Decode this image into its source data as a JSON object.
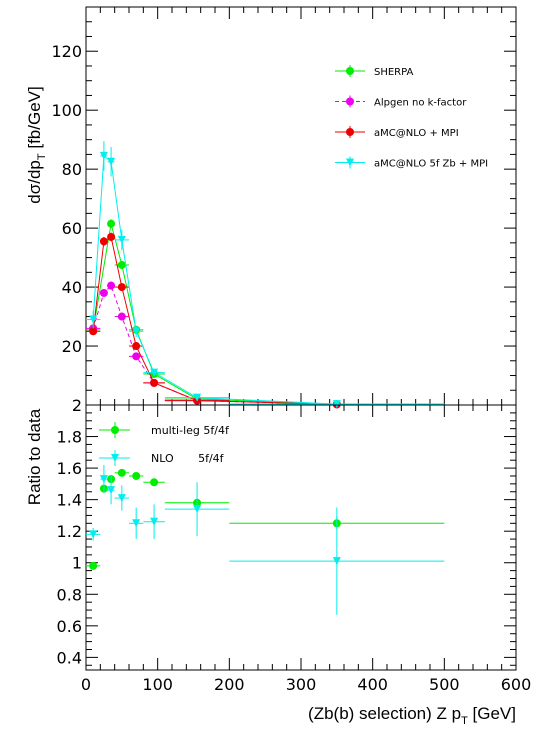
{
  "chart_data": [
    {
      "type": "line",
      "panel": "top",
      "ylabel_main": "dσ/dp",
      "ylabel_sub": "T",
      "ylabel_tail": " [fb/GeV]",
      "xlim": [
        0,
        600
      ],
      "ylim": [
        0,
        135
      ],
      "yticks": [
        20,
        40,
        60,
        80,
        100,
        120
      ],
      "grid": false,
      "legend_position": "top-right",
      "series": [
        {
          "name": "SHERPA",
          "color": "#00ee00",
          "style": "solid",
          "marker": "circle",
          "x": [
            10,
            35,
            50,
            70,
            95,
            155,
            350
          ],
          "xerr": [
            [
              0,
              20
            ],
            [
              30,
              40
            ],
            [
              40,
              60
            ],
            [
              60,
              80
            ],
            [
              80,
              110
            ],
            [
              110,
              200
            ],
            [
              200,
              500
            ]
          ],
          "y": [
            25.5,
            61.5,
            47.5,
            25.5,
            10.5,
            2.0,
            0.3
          ],
          "yerr": [
            1.2,
            1.5,
            1.3,
            1.0,
            0.6,
            0.2,
            0.05
          ]
        },
        {
          "name": "Alpgen no k-factor",
          "color": "#ee00ee",
          "style": "dashed",
          "marker": "circle",
          "x": [
            10,
            25,
            35,
            50,
            70,
            95,
            155,
            350
          ],
          "xerr": [
            [
              0,
              20
            ],
            [
              20,
              30
            ],
            [
              30,
              40
            ],
            [
              40,
              60
            ],
            [
              60,
              80
            ],
            [
              80,
              110
            ],
            [
              110,
              200
            ],
            [
              200,
              500
            ]
          ],
          "y": [
            26.0,
            38.0,
            40.5,
            30.0,
            16.5,
            7.5,
            1.5,
            0.2
          ],
          "yerr": [
            1.2,
            1.3,
            1.4,
            1.2,
            0.9,
            0.5,
            0.15,
            0.05
          ]
        },
        {
          "name": "aMC@NLO + MPI",
          "color": "#ee0000",
          "style": "solid",
          "marker": "circle",
          "x": [
            10,
            25,
            35,
            50,
            70,
            95,
            155,
            350
          ],
          "xerr": [
            [
              0,
              20
            ],
            [
              20,
              30
            ],
            [
              30,
              40
            ],
            [
              40,
              60
            ],
            [
              60,
              80
            ],
            [
              80,
              110
            ],
            [
              110,
              200
            ],
            [
              200,
              500
            ]
          ],
          "y": [
            25.0,
            55.5,
            57.0,
            40.0,
            20.0,
            7.5,
            1.5,
            0.2
          ],
          "yerr": [
            1.2,
            1.5,
            1.5,
            1.3,
            0.9,
            0.5,
            0.15,
            0.05
          ]
        },
        {
          "name": "aMC@NLO 5f Zb + MPI",
          "color": "#00eeee",
          "style": "solid",
          "marker": "triangle-down",
          "x": [
            10,
            25,
            35,
            50,
            70,
            95,
            155,
            350
          ],
          "xerr": [
            [
              0,
              20
            ],
            [
              20,
              30
            ],
            [
              30,
              40
            ],
            [
              40,
              60
            ],
            [
              60,
              80
            ],
            [
              80,
              110
            ],
            [
              110,
              200
            ],
            [
              200,
              500
            ]
          ],
          "y": [
            29.0,
            84.5,
            82.5,
            56.0,
            25.0,
            11.0,
            2.5,
            0.3
          ],
          "yerr": [
            3.0,
            5.0,
            5.0,
            3.5,
            2.0,
            1.0,
            0.3,
            0.1
          ]
        }
      ]
    },
    {
      "type": "scatter",
      "panel": "bottom",
      "ylabel": "Ratio to data",
      "xlabel": "(Zb(b) selection) Z p",
      "xlabel_sub": "T",
      "xlabel_tail": " [GeV]",
      "xlim": [
        0,
        600
      ],
      "ylim": [
        0.32,
        2.0
      ],
      "xticks": [
        0,
        100,
        200,
        300,
        400,
        500,
        600
      ],
      "yticks": [
        0.4,
        0.6,
        0.8,
        1,
        1.2,
        1.4,
        1.6,
        1.8
      ],
      "grid": false,
      "legend_position": "top-left",
      "series": [
        {
          "name": "multi-leg 5f/4f",
          "color": "#00ee00",
          "marker": "circle",
          "x": [
            10,
            25,
            35,
            50,
            70,
            95,
            155,
            350
          ],
          "xerr": [
            [
              0,
              20
            ],
            [
              20,
              30
            ],
            [
              30,
              40
            ],
            [
              40,
              60
            ],
            [
              60,
              80
            ],
            [
              80,
              110
            ],
            [
              110,
              200
            ],
            [
              200,
              500
            ]
          ],
          "y": [
            0.98,
            1.47,
            1.53,
            1.57,
            1.55,
            1.51,
            1.38,
            1.25
          ],
          "yerr": [
            0.01,
            0.02,
            0.02,
            0.02,
            0.02,
            0.02,
            0.03,
            0.04
          ]
        },
        {
          "name": "NLO       5f/4f",
          "color": "#00eeee",
          "marker": "triangle-down",
          "x": [
            10,
            25,
            35,
            50,
            70,
            95,
            155,
            350
          ],
          "xerr": [
            [
              0,
              20
            ],
            [
              20,
              30
            ],
            [
              30,
              40
            ],
            [
              40,
              60
            ],
            [
              60,
              80
            ],
            [
              80,
              110
            ],
            [
              110,
              200
            ],
            [
              200,
              500
            ]
          ],
          "y": [
            1.18,
            1.53,
            1.46,
            1.41,
            1.25,
            1.26,
            1.34,
            1.01
          ],
          "yerr": [
            0.04,
            0.09,
            0.09,
            0.08,
            0.1,
            0.11,
            0.17,
            0.34
          ]
        }
      ]
    }
  ]
}
